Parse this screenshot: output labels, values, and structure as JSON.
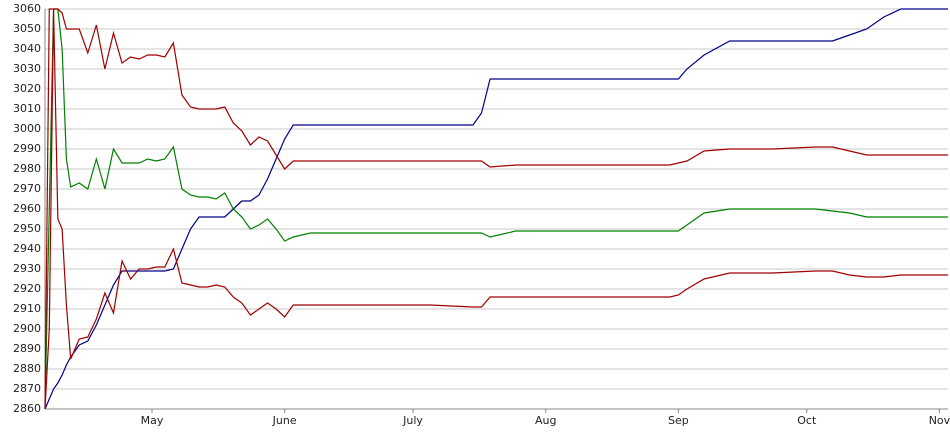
{
  "chart_data": {
    "type": "line",
    "x": [
      0,
      1,
      2,
      3,
      4,
      5,
      6,
      8,
      10,
      12,
      14,
      16,
      18,
      20,
      22,
      24,
      26,
      28,
      30,
      32,
      34,
      36,
      38,
      40,
      42,
      44,
      46,
      48,
      50,
      52,
      54,
      56,
      58,
      62,
      70,
      80,
      90,
      100,
      102,
      104,
      110,
      120,
      130,
      140,
      146,
      148,
      150,
      154,
      160,
      170,
      180,
      184,
      188,
      192,
      196,
      200,
      204,
      211
    ],
    "xlim": [
      0,
      211
    ],
    "xticks": [
      {
        "value": 25,
        "label": "May"
      },
      {
        "value": 56,
        "label": "June"
      },
      {
        "value": 86,
        "label": "July"
      },
      {
        "value": 117,
        "label": "Aug"
      },
      {
        "value": 148,
        "label": "Sep"
      },
      {
        "value": 178,
        "label": "Oct"
      },
      {
        "value": 209,
        "label": "Nov"
      }
    ],
    "ylim": [
      2860,
      3060
    ],
    "yticks": [
      2860,
      2870,
      2880,
      2890,
      2900,
      2910,
      2920,
      2930,
      2940,
      2950,
      2960,
      2970,
      2980,
      2990,
      3000,
      3010,
      3020,
      3030,
      3040,
      3050,
      3060
    ],
    "grid": true,
    "series": [
      {
        "color": "#00008b",
        "values": [
          2860,
          2865,
          2870,
          2873,
          2877,
          2882,
          2886,
          2892,
          2894,
          2902,
          2912,
          2922,
          2929,
          2929,
          2929,
          2929,
          2929,
          2929,
          2930,
          2940,
          2950,
          2956,
          2956,
          2956,
          2956,
          2960,
          2964,
          2964,
          2967,
          2975,
          2985,
          2995,
          3002,
          3002,
          3002,
          3002,
          3002,
          3002,
          3008,
          3025,
          3025,
          3025,
          3025,
          3025,
          3025,
          3025,
          3030,
          3037,
          3044,
          3044,
          3044,
          3044,
          3047,
          3050,
          3056,
          3060,
          3060,
          3060
        ]
      },
      {
        "color": "#008000",
        "values": [
          2860,
          2960,
          3060,
          3060,
          3040,
          2985,
          2971,
          2973,
          2970,
          2985,
          2970,
          2990,
          2983,
          2983,
          2983,
          2985,
          2984,
          2985,
          2991,
          2970,
          2967,
          2966,
          2966,
          2965,
          2968,
          2960,
          2956,
          2950,
          2952,
          2955,
          2950,
          2944,
          2946,
          2948,
          2948,
          2948,
          2948,
          2948,
          2948,
          2946,
          2949,
          2949,
          2949,
          2949,
          2949,
          2949,
          2952,
          2958,
          2960,
          2960,
          2960,
          2959,
          2958,
          2956,
          2956,
          2956,
          2956,
          2956
        ]
      },
      {
        "color": "#a00000",
        "values": [
          2860,
          3060,
          3060,
          3060,
          3058,
          3050,
          3050,
          3050,
          3038,
          3052,
          3030,
          3048,
          3033,
          3036,
          3035,
          3037,
          3037,
          3036,
          3043,
          3017,
          3011,
          3010,
          3010,
          3010,
          3011,
          3003,
          2999,
          2992,
          2996,
          2994,
          2987,
          2980,
          2984,
          2984,
          2984,
          2984,
          2984,
          2984,
          2984,
          2981,
          2982,
          2982,
          2982,
          2982,
          2982,
          2983,
          2984,
          2989,
          2990,
          2990,
          2991,
          2991,
          2989,
          2987,
          2987,
          2987,
          2987,
          2987
        ]
      },
      {
        "color": "#a00000",
        "values": [
          2860,
          2900,
          3060,
          2955,
          2950,
          2912,
          2885,
          2895,
          2896,
          2905,
          2918,
          2908,
          2934,
          2925,
          2930,
          2930,
          2931,
          2931,
          2940,
          2923,
          2922,
          2921,
          2921,
          2922,
          2921,
          2916,
          2913,
          2907,
          2910,
          2913,
          2910,
          2906,
          2912,
          2912,
          2912,
          2912,
          2912,
          2911,
          2911,
          2916,
          2916,
          2916,
          2916,
          2916,
          2916,
          2917,
          2920,
          2925,
          2928,
          2928,
          2929,
          2929,
          2927,
          2926,
          2926,
          2927,
          2927,
          2927
        ]
      }
    ]
  }
}
